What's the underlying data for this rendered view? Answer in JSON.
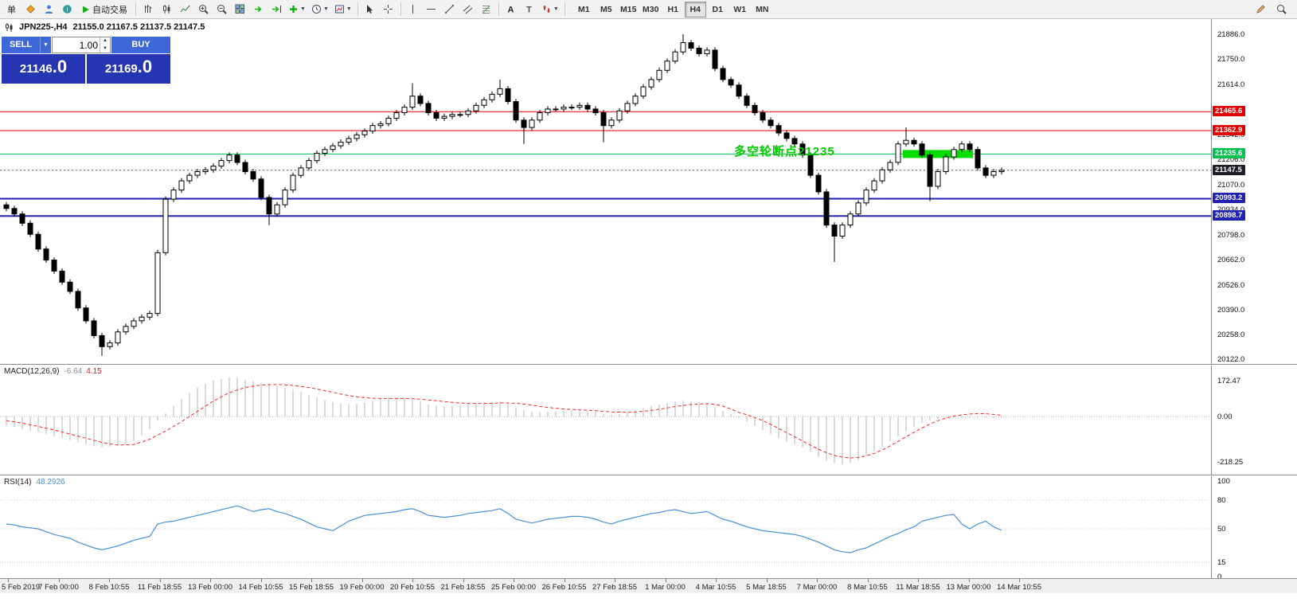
{
  "toolbar": {
    "new_order_label": "单",
    "autotrading_label": "自动交易",
    "timeframes": [
      "M1",
      "M5",
      "M15",
      "M30",
      "H1",
      "H4",
      "D1",
      "W1",
      "MN"
    ],
    "active_timeframe": "H4"
  },
  "header": {
    "symbol_period": "JPN225-,H4",
    "ohlc": "21155.0 21167.5 21137.5 21147.5"
  },
  "trade_panel": {
    "sell_label": "SELL",
    "buy_label": "BUY",
    "volume": "1.00",
    "sell_price_main": "21146",
    "sell_price_frac": ".0",
    "buy_price_main": "21169",
    "buy_price_frac": ".0"
  },
  "annotation": {
    "text": "多空轮断点21235"
  },
  "chart_data": {
    "type": "candlestick",
    "symbol": "JPN225-",
    "period": "H4",
    "current_price_value": 21147.5,
    "current_price_label": "21147.5",
    "current_price_badge_color": "#1d1d26",
    "colors": {
      "bull": "#ffffff",
      "bear": "#000000",
      "outline": "#000000",
      "macd_histogram": "#b4b4b4",
      "macd_signal": "#ff2222",
      "rsi_line": "#4a8fd4",
      "background": "#ffffff"
    },
    "price_axis_labels": [
      "21886.0",
      "21750.0",
      "21614.0",
      "21478.0",
      "21342.0",
      "21206.0",
      "21070.0",
      "20934.0",
      "20798.0",
      "20662.0",
      "20526.0",
      "20390.0",
      "20258.0",
      "20122.0"
    ],
    "price_axis_values": [
      21886,
      21750,
      21614,
      21478,
      21342,
      21206,
      21070,
      20934,
      20798,
      20662,
      20526,
      20390,
      20258,
      20122
    ],
    "levels": [
      {
        "price": 21465.6,
        "label": "21465.6",
        "color": "#e00000",
        "thickness": 1
      },
      {
        "price": 21362.9,
        "label": "21362.9",
        "color": "#e00000",
        "thickness": 1
      },
      {
        "price": 21235.6,
        "label": "21235.6",
        "color": "#00c050",
        "thickness": 1
      },
      {
        "price": 20993.2,
        "label": "20993.2",
        "color": "#2222b0",
        "thickness": 2
      },
      {
        "price": 20898.7,
        "label": "20898.7",
        "color": "#2222b0",
        "thickness": 2
      }
    ],
    "zone": {
      "start_index": 113,
      "end_index": 121,
      "price": 21235.6,
      "color": "#00dd00"
    },
    "candles": {
      "first_open": 20960,
      "default_wick": 15,
      "closes": [
        20940,
        20910,
        20860,
        20800,
        20720,
        20660,
        20600,
        20540,
        20490,
        20400,
        20330,
        20250,
        20190,
        20210,
        20270,
        20300,
        20330,
        20350,
        20370,
        20700,
        20990,
        21040,
        21090,
        21120,
        21140,
        21150,
        21170,
        21200,
        21230,
        21190,
        21140,
        21100,
        21000,
        20910,
        20960,
        21040,
        21120,
        21160,
        21200,
        21240,
        21260,
        21280,
        21300,
        21320,
        21340,
        21360,
        21390,
        21400,
        21430,
        21460,
        21490,
        21550,
        21510,
        21460,
        21430,
        21440,
        21450,
        21450,
        21470,
        21500,
        21530,
        21560,
        21590,
        21520,
        21420,
        21380,
        21420,
        21460,
        21480,
        21480,
        21490,
        21490,
        21500,
        21480,
        21460,
        21390,
        21420,
        21470,
        21510,
        21550,
        21600,
        21640,
        21690,
        21740,
        21790,
        21840,
        21810,
        21780,
        21800,
        21700,
        21640,
        21610,
        21550,
        21500,
        21460,
        21420,
        21390,
        21350,
        21320,
        21290,
        21230,
        21120,
        21030,
        20850,
        20790,
        20850,
        20910,
        20970,
        21040,
        21090,
        21150,
        21190,
        21290,
        21310,
        21290,
        21230,
        21060,
        21140,
        21220,
        21260,
        21290,
        21260,
        21160,
        21120,
        21140,
        21147.5
      ],
      "high_overrides": {
        "51": 21620,
        "62": 21640,
        "85": 21886,
        "113": 21380
      },
      "low_overrides": {
        "12": 20140,
        "33": 20850,
        "65": 21290,
        "75": 21300,
        "104": 20650,
        "116": 20980
      }
    },
    "macd": {
      "name": "MACD(12,26,9)",
      "value": "-6.64",
      "signal": "4.15",
      "scale_labels": [
        "172.47",
        "0.00",
        "-218.25"
      ],
      "scale_values": [
        172.47,
        0,
        -218.25
      ],
      "histogram": [
        -45,
        -52,
        -60,
        -68,
        -75,
        -85,
        -95,
        -105,
        -115,
        -125,
        -135,
        -143,
        -150,
        -145,
        -140,
        -129,
        -118,
        -89,
        -60,
        -20,
        15,
        50,
        85,
        115,
        140,
        158,
        172,
        182,
        188,
        185,
        178,
        170,
        162,
        155,
        148,
        140,
        130,
        118,
        105,
        92,
        80,
        70,
        62,
        60,
        62,
        68,
        75,
        85,
        92,
        90,
        85,
        80,
        70,
        58,
        52,
        50,
        52,
        55,
        60,
        65,
        68,
        70,
        72,
        60,
        45,
        30,
        22,
        20,
        22,
        25,
        27,
        28,
        28,
        26,
        22,
        12,
        8,
        12,
        20,
        30,
        40,
        50,
        58,
        65,
        72,
        76,
        72,
        68,
        60,
        45,
        28,
        12,
        -5,
        -25,
        -45,
        -65,
        -85,
        -105,
        -120,
        -135,
        -150,
        -170,
        -195,
        -215,
        -228,
        -232,
        -225,
        -210,
        -190,
        -168,
        -145,
        -120,
        -95,
        -72,
        -50,
        -32,
        -18,
        -12,
        -9,
        -8,
        -7,
        -7,
        -6,
        -6,
        -7,
        -7
      ],
      "signal_line": [
        -20,
        -26,
        -32,
        -40,
        -48,
        -56,
        -65,
        -75,
        -85,
        -95,
        -105,
        -115,
        -125,
        -132,
        -138,
        -137,
        -135,
        -123,
        -110,
        -90,
        -70,
        -48,
        -25,
        0,
        25,
        50,
        75,
        95,
        115,
        128,
        140,
        146,
        152,
        154,
        155,
        153,
        150,
        145,
        140,
        133,
        125,
        117,
        108,
        101,
        95,
        91,
        88,
        87,
        87,
        87,
        87,
        86,
        84,
        80,
        76,
        72,
        68,
        65,
        63,
        63,
        63,
        64,
        66,
        65,
        64,
        60,
        55,
        49,
        44,
        40,
        36,
        34,
        32,
        30,
        28,
        25,
        22,
        21,
        20,
        22,
        25,
        30,
        35,
        41,
        48,
        53,
        58,
        60,
        62,
        58,
        50,
        36,
        20,
        8,
        -5,
        -20,
        -38,
        -58,
        -78,
        -98,
        -118,
        -138,
        -158,
        -175,
        -188,
        -196,
        -200,
        -198,
        -190,
        -178,
        -162,
        -142,
        -120,
        -98,
        -76,
        -55,
        -36,
        -20,
        -8,
        2,
        8,
        12,
        14,
        13,
        10,
        6
      ]
    },
    "rsi": {
      "name": "RSI(14)",
      "value": "48.2926",
      "scale_labels": [
        "100",
        "80",
        "50",
        "15",
        "0"
      ],
      "scale_values": [
        100,
        80,
        50,
        15,
        0
      ],
      "level_values": [
        80,
        50,
        15
      ],
      "values": [
        55,
        54,
        52,
        51,
        50,
        47,
        44,
        42,
        40,
        36,
        33,
        30,
        28,
        30,
        32,
        35,
        38,
        40,
        42,
        55,
        57,
        58,
        60,
        62,
        64,
        66,
        68,
        70,
        72,
        74,
        71,
        68,
        70,
        71,
        68,
        66,
        63,
        60,
        56,
        52,
        50,
        48,
        53,
        58,
        61,
        64,
        65,
        66,
        67,
        68,
        70,
        71,
        68,
        64,
        63,
        62,
        63,
        64,
        66,
        67,
        68,
        69,
        71,
        66,
        60,
        58,
        56,
        58,
        60,
        61,
        62,
        63,
        63,
        62,
        60,
        57,
        55,
        58,
        60,
        62,
        64,
        66,
        67,
        69,
        70,
        68,
        66,
        67,
        68,
        64,
        60,
        58,
        55,
        52,
        50,
        48,
        47,
        46,
        45,
        44,
        42,
        39,
        36,
        32,
        28,
        26,
        25,
        28,
        30,
        34,
        38,
        42,
        45,
        49,
        52,
        58,
        60,
        62,
        64,
        65,
        55,
        50,
        55,
        58,
        52,
        48.3
      ]
    },
    "time_axis": [
      "5 Feb 2019",
      "7 Feb 00:00",
      "8 Feb 10:55",
      "11 Feb 18:55",
      "13 Feb 00:00",
      "14 Feb 10:55",
      "15 Feb 18:55",
      "19 Feb 00:00",
      "20 Feb 10:55",
      "21 Feb 18:55",
      "25 Feb 00:00",
      "26 Feb 10:55",
      "27 Feb 18:55",
      "1 Mar 00:00",
      "4 Mar 10:55",
      "5 Mar 18:55",
      "7 Mar 00:00",
      "8 Mar 10:55",
      "11 Mar 18:55",
      "13 Mar 00:00",
      "14 Mar 10:55"
    ]
  }
}
